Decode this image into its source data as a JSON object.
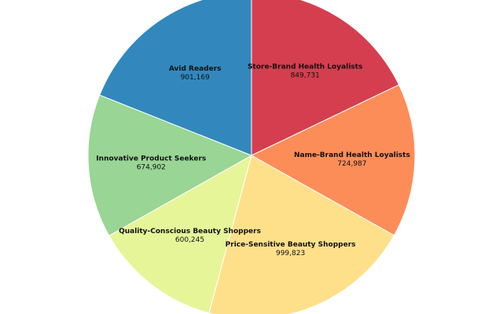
{
  "chart_data": {
    "type": "pie",
    "start": "top, clockwise",
    "slices": [
      {
        "label": "Store-Brand Health Loyalists",
        "value": 849731,
        "value_text": "849,731",
        "color": "#d53e4f"
      },
      {
        "label": "Name-Brand Health Loyalists",
        "value": 724987,
        "value_text": "724,987",
        "color": "#fc8d59"
      },
      {
        "label": "Price-Sensitive Beauty Shoppers",
        "value": 999823,
        "value_text": "999,823",
        "color": "#fee08b"
      },
      {
        "label": "Quality-Conscious Beauty Shoppers",
        "value": 600245,
        "value_text": "600,245",
        "color": "#e6f598"
      },
      {
        "label": "Innovative Product Seekers",
        "value": 674902,
        "value_text": "674,902",
        "color": "#99d594"
      },
      {
        "label": "Avid Readers",
        "value": 901169,
        "value_text": "901,169",
        "color": "#3288bd"
      }
    ]
  }
}
